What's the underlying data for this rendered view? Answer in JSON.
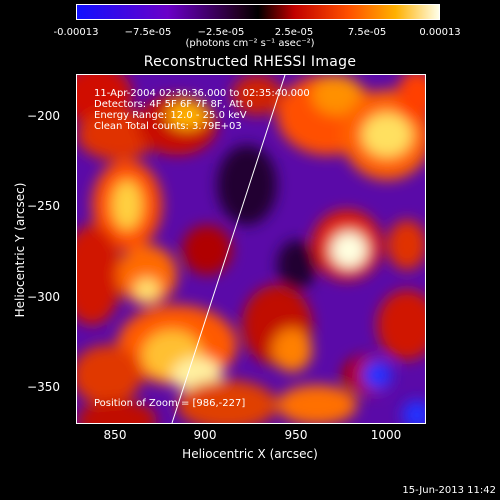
{
  "colorbar": {
    "ticks": [
      "-0.00013",
      "−7.5e-05",
      "−2.5e-05",
      "2.5e-05",
      "7.5e-05",
      "0.00013"
    ],
    "units": "(photons cm⁻² s⁻¹ asec⁻²)"
  },
  "plot": {
    "title": "Reconstructed RHESSI Image",
    "xlabel": "Heliocentric X (arcsec)",
    "ylabel": "Heliocentric Y (arcsec)",
    "xticks": [
      "850",
      "900",
      "950",
      "1000"
    ],
    "yticks": [
      "−200",
      "−250",
      "−300",
      "−350"
    ],
    "info": {
      "time_range": "11-Apr-2004 02:30:36.000 to 02:35:40.000",
      "detectors": "Detectors: 4F 5F 6F 7F 8F, Att 0",
      "energy": "Energy Range: 12.0 - 25.0 keV",
      "clean": "Clean     Total counts: 3.79E+03",
      "position": "Position of Zoom = [986,-227]"
    }
  },
  "footer": {
    "date": "15-Jun-2013 11:42"
  }
}
